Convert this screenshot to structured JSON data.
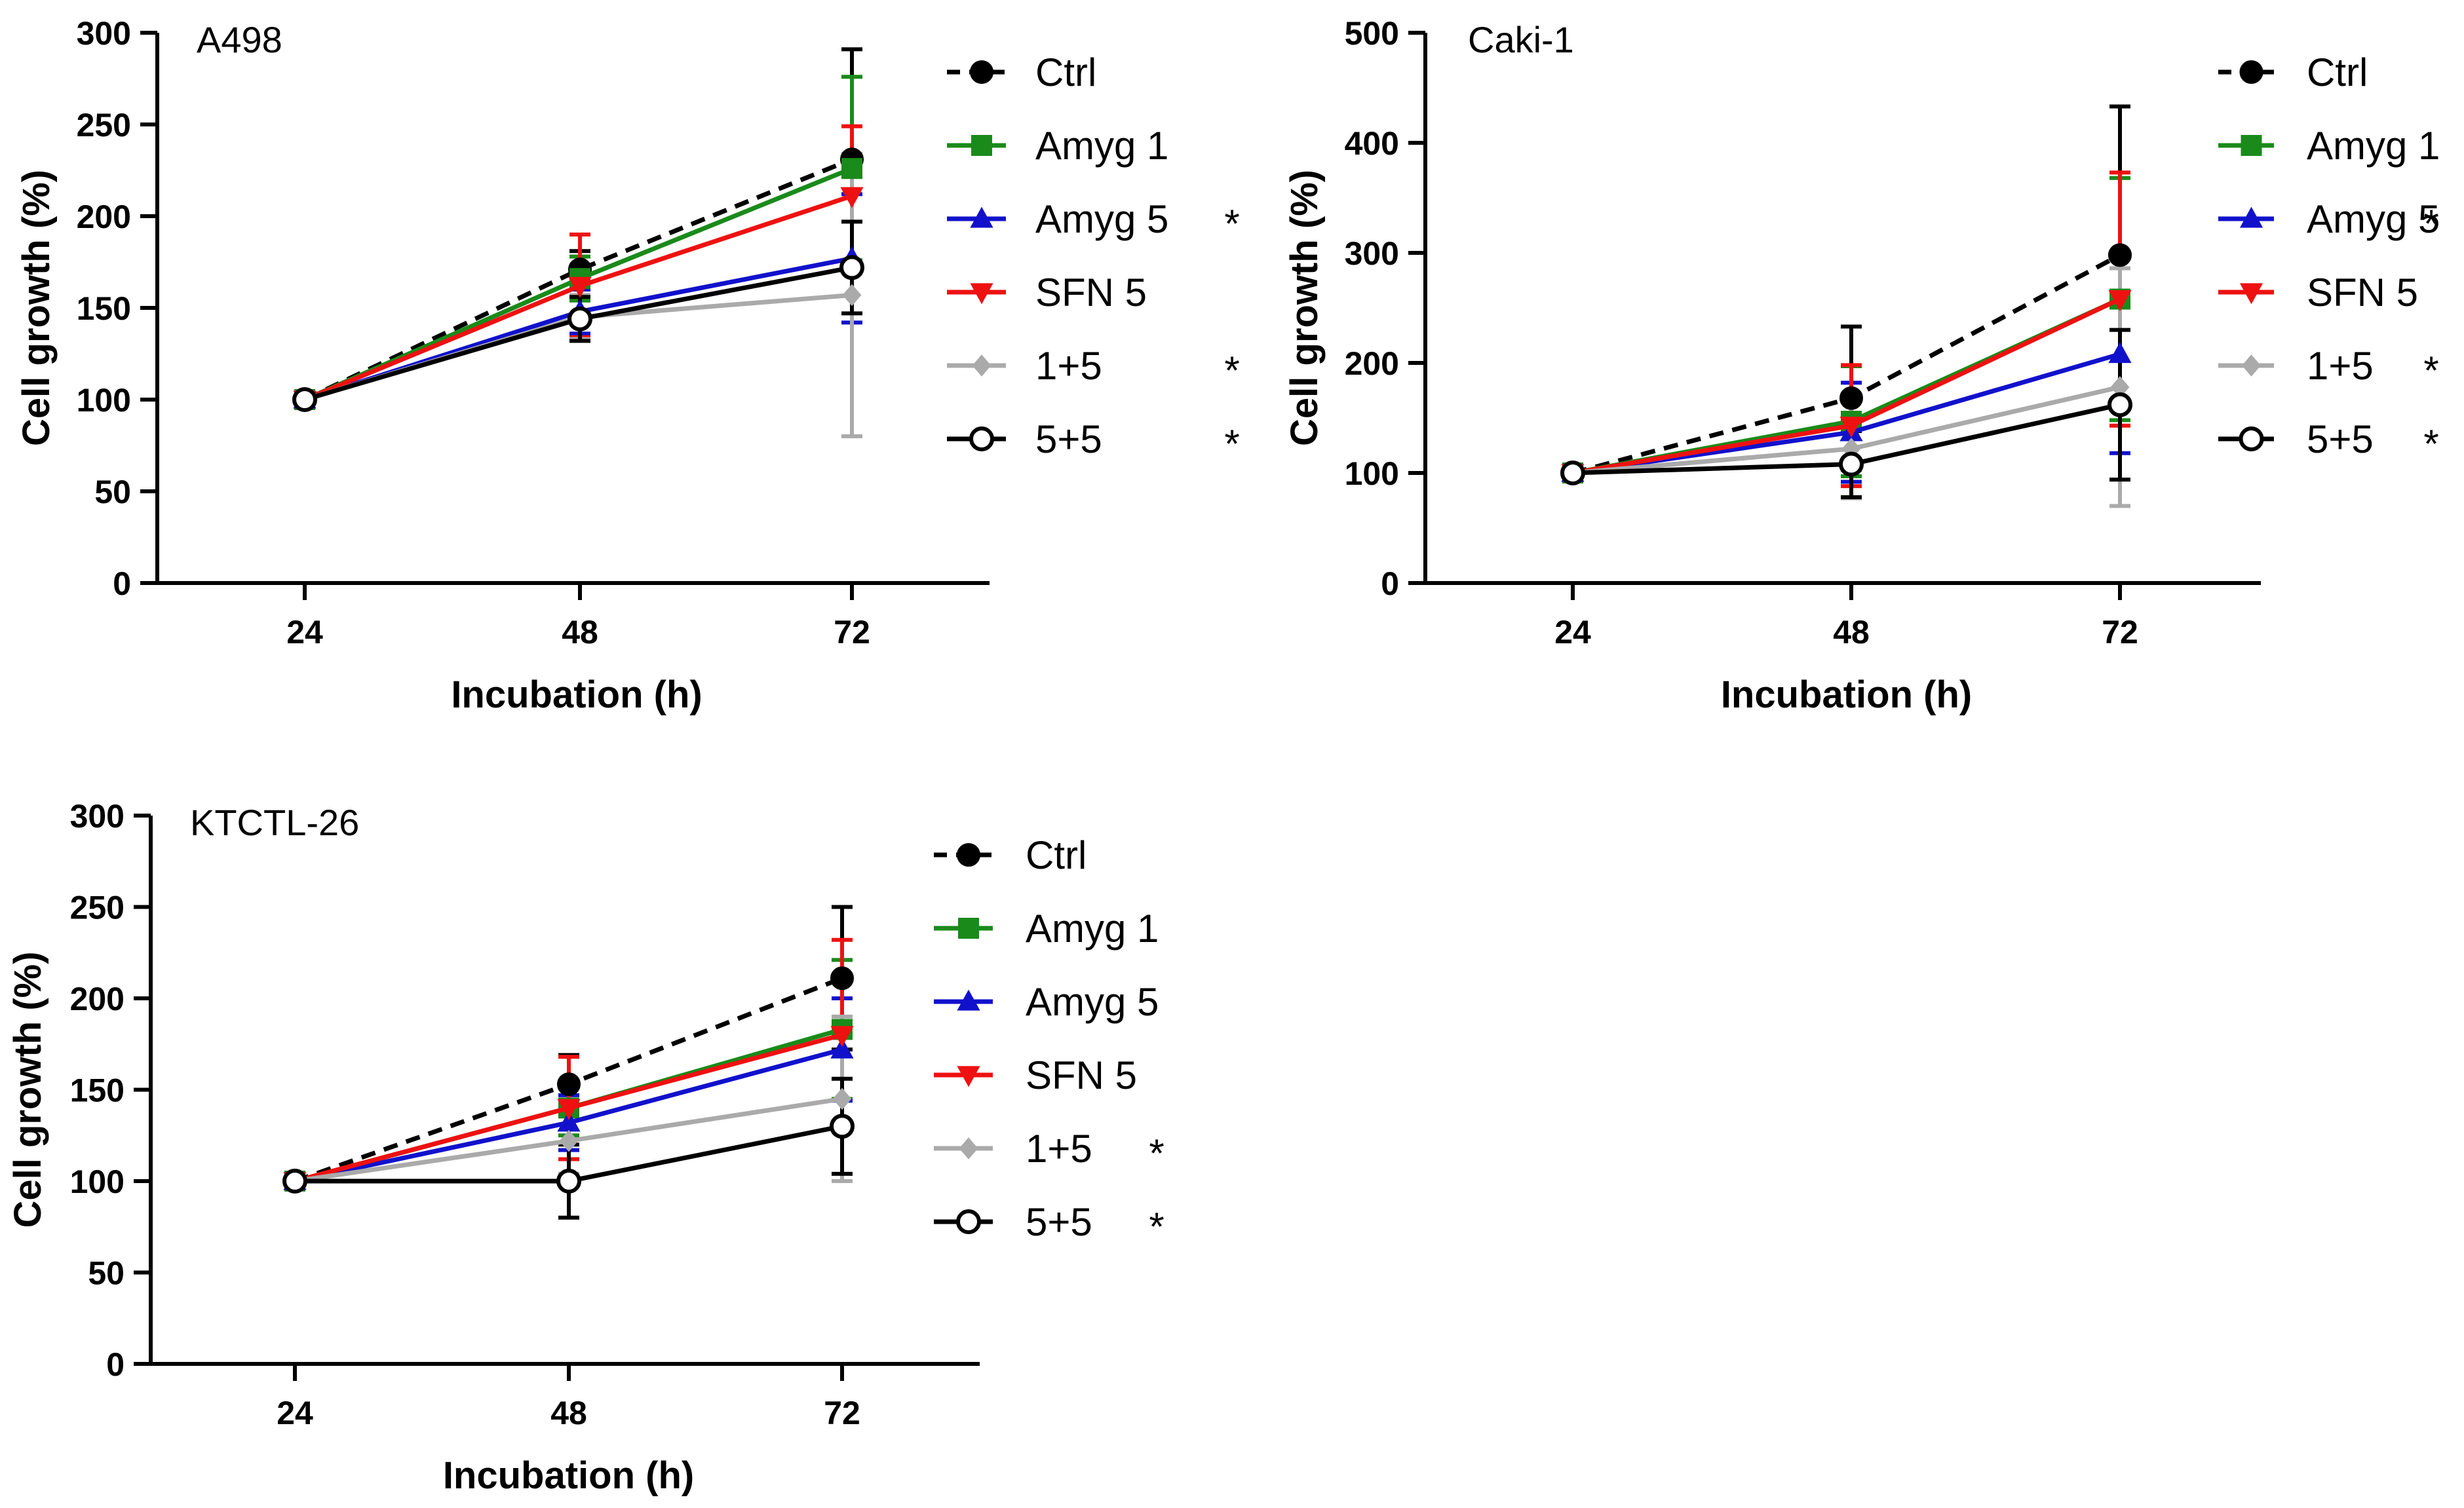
{
  "figure": {
    "description_free": true
  },
  "chart_data": [
    {
      "type": "line",
      "title": "A498",
      "xlabel": "Incubation (h)",
      "ylabel": "Cell growth (%)",
      "x": [
        24,
        48,
        72
      ],
      "x_ticks": [
        "24",
        "48",
        "72"
      ],
      "y_ticks": [
        "0",
        "50",
        "100",
        "150",
        "200",
        "250",
        "300"
      ],
      "ylim": [
        0,
        300
      ],
      "legend_position": "right",
      "series": [
        {
          "name": "Ctrl",
          "values": [
            100,
            171,
            231
          ],
          "errors": [
            0,
            10,
            60
          ],
          "color": "#000000",
          "dashed": true,
          "marker": "circle",
          "sig": ""
        },
        {
          "name": "Amyg 1",
          "values": [
            100,
            166,
            226
          ],
          "errors": [
            0,
            12,
            50
          ],
          "color": "#1a8a1a",
          "dashed": false,
          "marker": "square",
          "sig": ""
        },
        {
          "name": "Amyg 5",
          "values": [
            100,
            148,
            177
          ],
          "errors": [
            0,
            12,
            35
          ],
          "color": "#1111cc",
          "dashed": false,
          "marker": "triangle-up",
          "sig": "*"
        },
        {
          "name": "SFN 5",
          "values": [
            100,
            162,
            211
          ],
          "errors": [
            0,
            28,
            38
          ],
          "color": "#ee1111",
          "dashed": false,
          "marker": "triangle-down",
          "sig": ""
        },
        {
          "name": "1+5",
          "values": [
            100,
            145,
            157
          ],
          "errors": [
            0,
            12,
            77
          ],
          "color": "#aaaaaa",
          "dashed": false,
          "marker": "diamond",
          "sig": "*"
        },
        {
          "name": "5+5",
          "values": [
            100,
            144,
            172
          ],
          "errors": [
            0,
            12,
            25
          ],
          "color": "#000000",
          "dashed": false,
          "marker": "open-circle",
          "sig": "*"
        }
      ]
    },
    {
      "type": "line",
      "title": "Caki-1",
      "xlabel": "Incubation (h)",
      "ylabel": "Cell growth (%)",
      "x": [
        24,
        48,
        72
      ],
      "x_ticks": [
        "24",
        "48",
        "72"
      ],
      "y_ticks": [
        "0",
        "100",
        "200",
        "300",
        "400",
        "500"
      ],
      "ylim": [
        0,
        500
      ],
      "legend_position": "right",
      "series": [
        {
          "name": "Ctrl",
          "values": [
            100,
            168,
            298
          ],
          "errors": [
            0,
            65,
            135
          ],
          "color": "#000000",
          "dashed": true,
          "marker": "circle",
          "sig": ""
        },
        {
          "name": "Amyg 1",
          "values": [
            100,
            147,
            258
          ],
          "errors": [
            0,
            50,
            110
          ],
          "color": "#1a8a1a",
          "dashed": false,
          "marker": "square",
          "sig": ""
        },
        {
          "name": "Amyg 5",
          "values": [
            100,
            137,
            208
          ],
          "errors": [
            0,
            45,
            90
          ],
          "color": "#1111cc",
          "dashed": false,
          "marker": "triangle-up",
          "sig": "*"
        },
        {
          "name": "SFN 5",
          "values": [
            100,
            143,
            258
          ],
          "errors": [
            0,
            55,
            115
          ],
          "color": "#ee1111",
          "dashed": false,
          "marker": "triangle-down",
          "sig": ""
        },
        {
          "name": "1+5",
          "values": [
            100,
            122,
            178
          ],
          "errors": [
            0,
            45,
            108
          ],
          "color": "#aaaaaa",
          "dashed": false,
          "marker": "diamond",
          "sig": "*"
        },
        {
          "name": "5+5",
          "values": [
            100,
            108,
            162
          ],
          "errors": [
            0,
            30,
            68
          ],
          "color": "#000000",
          "dashed": false,
          "marker": "open-circle",
          "sig": "*"
        }
      ]
    },
    {
      "type": "line",
      "title": "KTCTL-26",
      "xlabel": "Incubation (h)",
      "ylabel": "Cell growth (%)",
      "x": [
        24,
        48,
        72
      ],
      "x_ticks": [
        "24",
        "48",
        "72"
      ],
      "y_ticks": [
        "0",
        "50",
        "100",
        "150",
        "200",
        "250",
        "300"
      ],
      "ylim": [
        0,
        300
      ],
      "legend_position": "right",
      "series": [
        {
          "name": "Ctrl",
          "values": [
            100,
            153,
            211
          ],
          "errors": [
            0,
            16,
            39
          ],
          "color": "#000000",
          "dashed": true,
          "marker": "circle",
          "sig": ""
        },
        {
          "name": "Amyg 1",
          "values": [
            100,
            140,
            183
          ],
          "errors": [
            0,
            15,
            38
          ],
          "color": "#1a8a1a",
          "dashed": false,
          "marker": "square",
          "sig": ""
        },
        {
          "name": "Amyg 5",
          "values": [
            100,
            132,
            172
          ],
          "errors": [
            0,
            15,
            28
          ],
          "color": "#1111cc",
          "dashed": false,
          "marker": "triangle-up",
          "sig": ""
        },
        {
          "name": "SFN 5",
          "values": [
            100,
            140,
            180
          ],
          "errors": [
            0,
            28,
            52
          ],
          "color": "#ee1111",
          "dashed": false,
          "marker": "triangle-down",
          "sig": ""
        },
        {
          "name": "1+5",
          "values": [
            100,
            122,
            145
          ],
          "errors": [
            0,
            18,
            45
          ],
          "color": "#aaaaaa",
          "dashed": false,
          "marker": "diamond",
          "sig": "*"
        },
        {
          "name": "5+5",
          "values": [
            100,
            100,
            130
          ],
          "errors": [
            0,
            20,
            26
          ],
          "color": "#000000",
          "dashed": false,
          "marker": "open-circle",
          "sig": "*"
        }
      ]
    }
  ]
}
